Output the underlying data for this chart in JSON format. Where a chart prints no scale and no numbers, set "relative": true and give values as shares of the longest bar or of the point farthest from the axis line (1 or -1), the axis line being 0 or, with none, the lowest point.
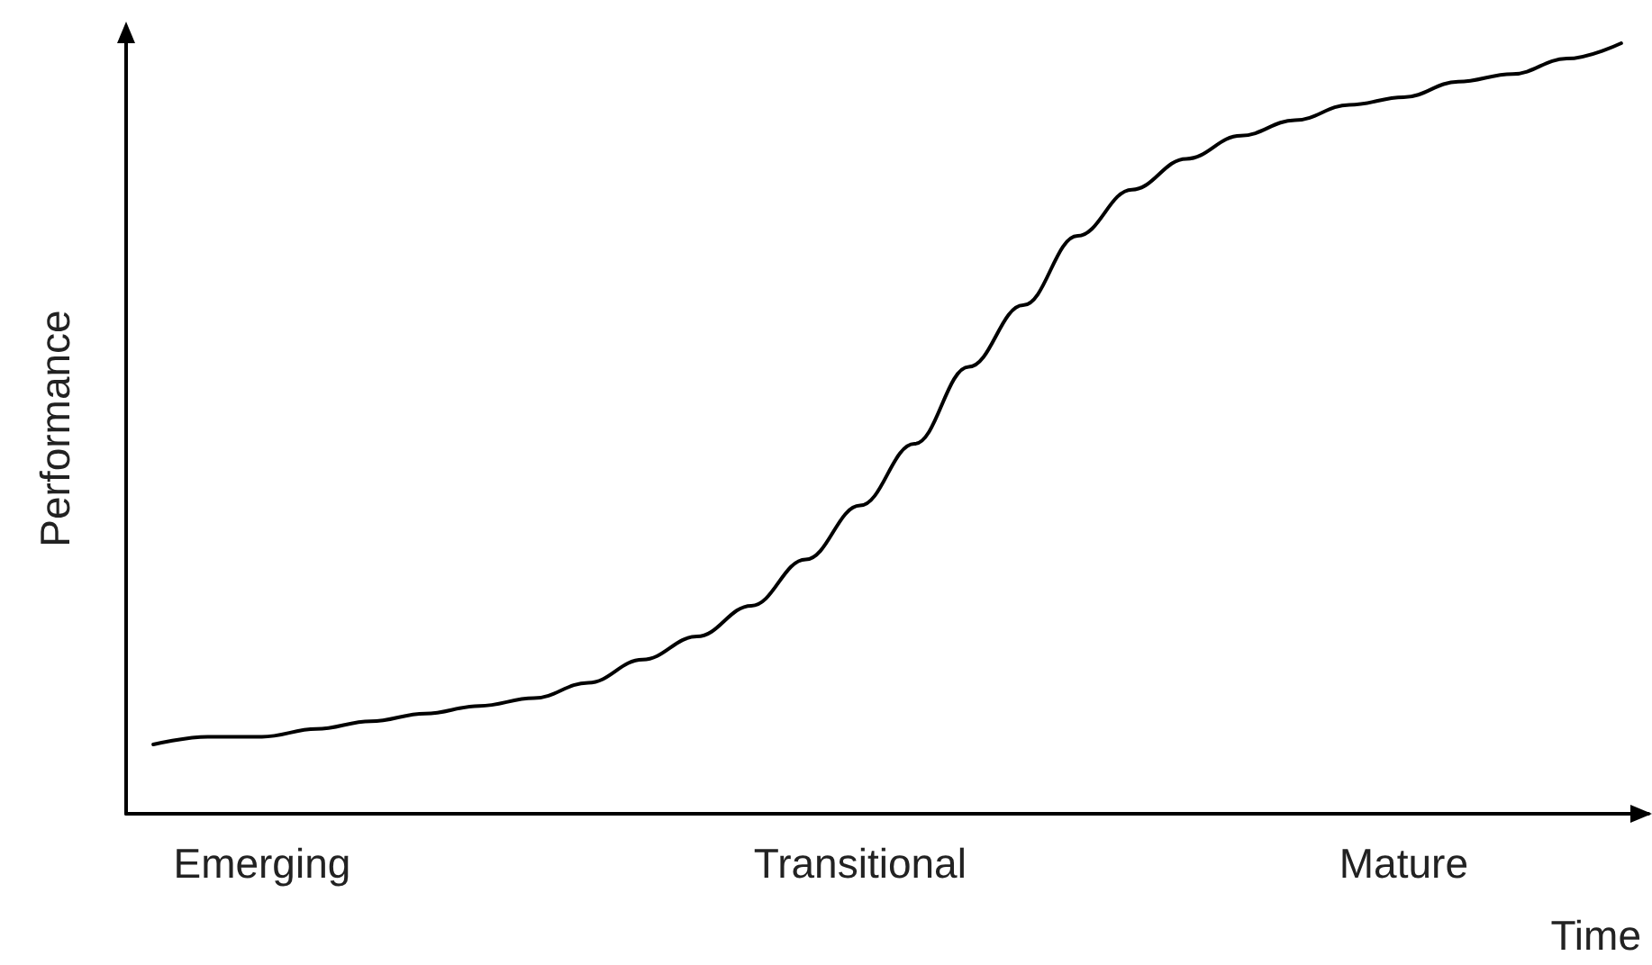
{
  "chart_data": {
    "type": "line",
    "relative": true,
    "xlabel": "Time",
    "ylabel": "Performance",
    "categories": [
      null,
      null,
      "Emerging",
      null,
      null,
      null,
      null,
      null,
      null,
      null,
      null,
      null,
      null,
      "Transitional",
      null,
      null,
      null,
      null,
      null,
      null,
      null,
      null,
      null,
      "Mature",
      null,
      null,
      null,
      null
    ],
    "series": [
      {
        "color": "#000000",
        "values": [
          0.09,
          0.1,
          0.1,
          0.11,
          0.12,
          0.13,
          0.14,
          0.15,
          0.17,
          0.2,
          0.23,
          0.27,
          0.33,
          0.4,
          0.48,
          0.58,
          0.66,
          0.75,
          0.81,
          0.85,
          0.88,
          0.9,
          0.92,
          0.93,
          0.95,
          0.96,
          0.98,
          1
        ]
      }
    ],
    "grid": false,
    "marker": "none",
    "line_style": "solid"
  }
}
